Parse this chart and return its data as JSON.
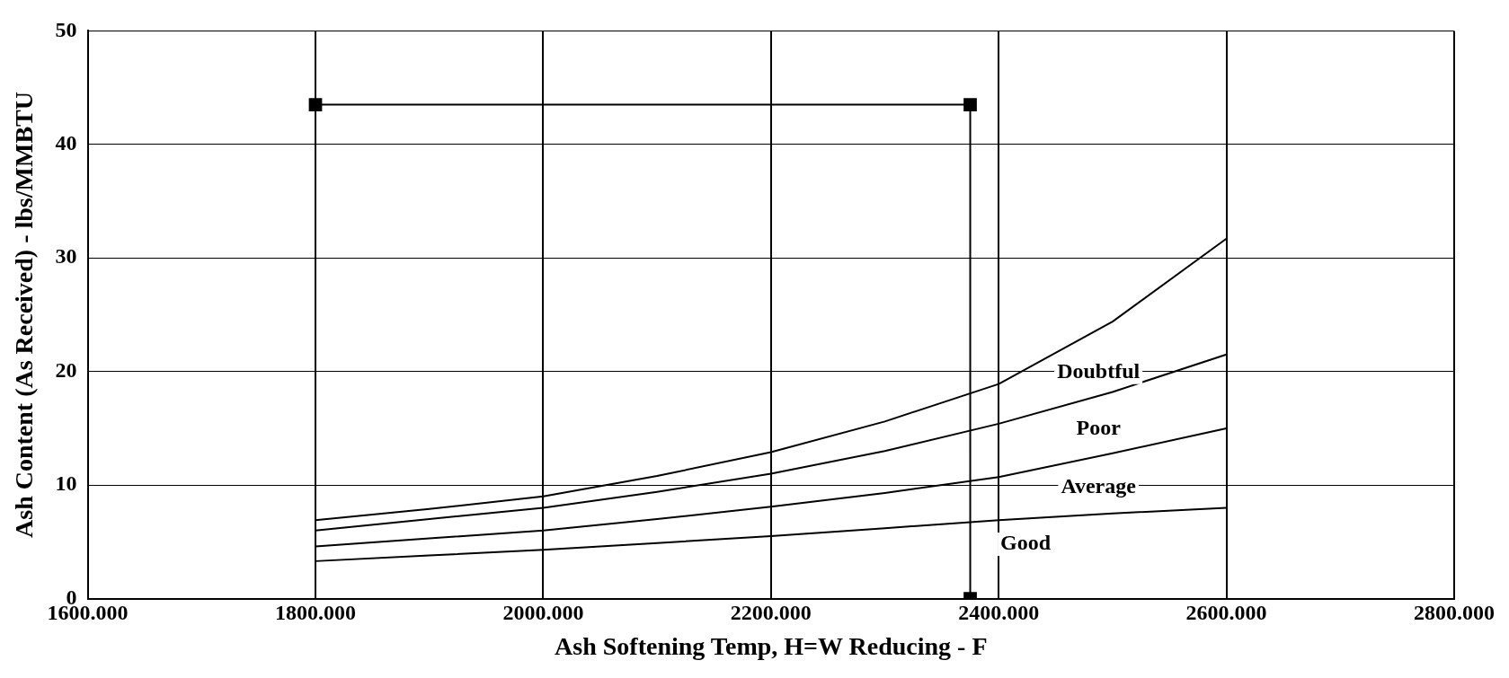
{
  "chart_data": {
    "type": "line",
    "xlabel": "Ash Softening Temp, H=W Reducing - F",
    "ylabel": "Ash Content (As Received) - lbs/MMBTU",
    "xlim": [
      1600,
      2800
    ],
    "xticks": [
      {
        "value": 1600,
        "label": "1600.000"
      },
      {
        "value": 1800,
        "label": "1800.000"
      },
      {
        "value": 2000,
        "label": "2000.000"
      },
      {
        "value": 2200,
        "label": "2200.000"
      },
      {
        "value": 2400,
        "label": "2400.000"
      },
      {
        "value": 2600,
        "label": "2600.000"
      },
      {
        "value": 2800,
        "label": "2800.000"
      }
    ],
    "ylim": [
      0,
      50
    ],
    "yticks": [
      0,
      10,
      20,
      30,
      40,
      50
    ],
    "grid": true,
    "legend": false,
    "marker": "none",
    "line_style": "solid",
    "series": [
      {
        "color": "#000000",
        "x": [
          1800,
          1900,
          2000,
          2100,
          2200,
          2300,
          2400,
          2500,
          2600
        ],
        "values": [
          6.9,
          7.9,
          9.0,
          10.8,
          12.9,
          15.6,
          18.9,
          24.4,
          31.7
        ]
      },
      {
        "color": "#000000",
        "x": [
          1800,
          1900,
          2000,
          2100,
          2200,
          2300,
          2400,
          2500,
          2600
        ],
        "values": [
          6.0,
          7.0,
          8.0,
          9.4,
          11.0,
          13.0,
          15.4,
          18.2,
          21.5
        ]
      },
      {
        "color": "#000000",
        "x": [
          1800,
          1900,
          2000,
          2100,
          2200,
          2300,
          2400,
          2500,
          2600
        ],
        "values": [
          4.6,
          5.3,
          6.0,
          7.0,
          8.1,
          9.3,
          10.7,
          12.8,
          15.0
        ]
      },
      {
        "color": "#000000",
        "x": [
          1800,
          1900,
          2000,
          2100,
          2200,
          2300,
          2400,
          2500,
          2600
        ],
        "values": [
          3.3,
          3.8,
          4.3,
          4.9,
          5.5,
          6.2,
          6.9,
          7.5,
          8.0
        ]
      },
      {
        "color": "#000000",
        "marker": "square",
        "x": [
          1800,
          2375,
          2375
        ],
        "values": [
          43.5,
          43.5,
          0
        ]
      }
    ],
    "annotations": [
      "Doubtful",
      "Poor",
      "Average",
      "Good"
    ]
  }
}
